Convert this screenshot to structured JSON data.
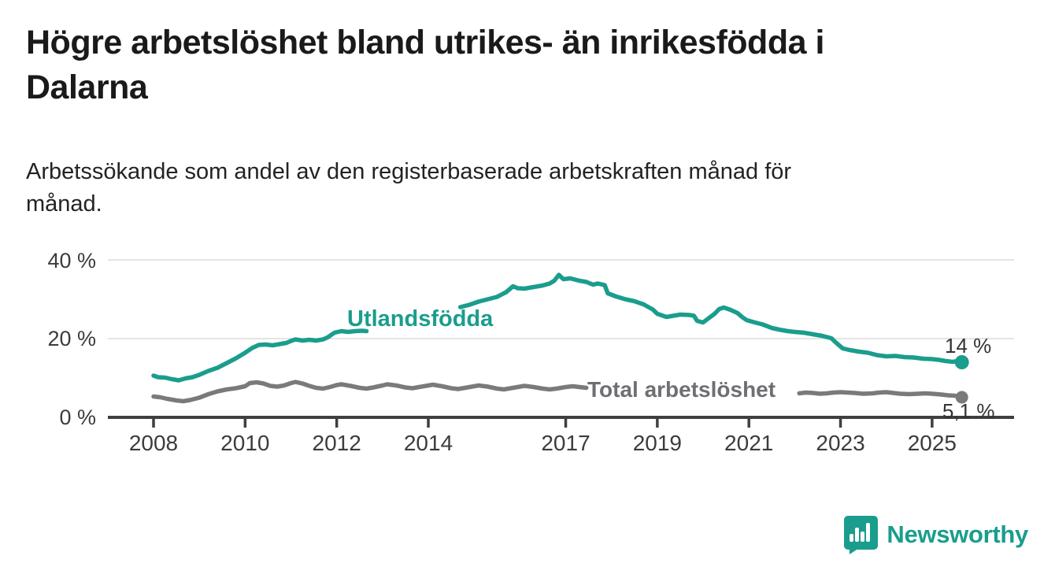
{
  "page": {
    "title_lines": [
      "Högre arbetslöshet bland utrikes- än inrikesfödda i",
      "Dalarna"
    ],
    "subtitle_lines": [
      "Arbetssökande som andel av den registerbaserade arbetskraften månad för",
      "månad."
    ],
    "logo": {
      "text": "Newsworthy",
      "color": "#1a9d8d"
    }
  },
  "chart_data": {
    "type": "line",
    "title": "Högre arbetslöshet bland utrikes- än inrikesfödda i Dalarna",
    "subtitle": "Arbetssökande som andel av den registerbaserade arbetskraften månad för månad.",
    "ylabel": "",
    "xlabel": "",
    "grid": "horizontal",
    "legend_position": "inline-labels",
    "y_axis": {
      "unit": "%",
      "range": [
        0,
        42
      ],
      "ticks": [
        {
          "label": "40 %",
          "value": 40
        },
        {
          "label": "20 %",
          "value": 20
        },
        {
          "label": "0 %",
          "value": 0
        }
      ]
    },
    "x_axis": {
      "range": [
        2007.05,
        2026.7
      ],
      "ticks": [
        {
          "label": "2008",
          "year": 2008
        },
        {
          "label": "2010",
          "year": 2010
        },
        {
          "label": "2012",
          "year": 2012
        },
        {
          "label": "2014",
          "year": 2014
        },
        {
          "label": "2017",
          "year": 2017
        },
        {
          "label": "2019",
          "year": 2019
        },
        {
          "label": "2021",
          "year": 2021
        },
        {
          "label": "2023",
          "year": 2023
        },
        {
          "label": "2025",
          "year": 2025
        }
      ]
    },
    "series": [
      {
        "name": "Utlandsfödda",
        "color": "#1a9d8d",
        "end_label": "14 %",
        "end_value": 14.0,
        "note": "line interrupted 2012.7-2014.7 by inline series label",
        "segments": [
          [
            [
              2008.0,
              10.6
            ],
            [
              2008.1,
              10.2
            ],
            [
              2008.25,
              10.1
            ],
            [
              2008.4,
              9.7
            ],
            [
              2008.55,
              9.4
            ],
            [
              2008.7,
              9.9
            ],
            [
              2008.85,
              10.2
            ],
            [
              2009.0,
              10.8
            ],
            [
              2009.2,
              11.8
            ],
            [
              2009.4,
              12.6
            ],
            [
              2009.6,
              13.8
            ],
            [
              2009.8,
              15.0
            ],
            [
              2010.0,
              16.4
            ],
            [
              2010.15,
              17.6
            ],
            [
              2010.3,
              18.4
            ],
            [
              2010.45,
              18.5
            ],
            [
              2010.6,
              18.3
            ],
            [
              2010.75,
              18.6
            ],
            [
              2010.9,
              18.9
            ],
            [
              2011.0,
              19.4
            ],
            [
              2011.1,
              19.8
            ],
            [
              2011.25,
              19.5
            ],
            [
              2011.4,
              19.7
            ],
            [
              2011.55,
              19.5
            ],
            [
              2011.7,
              19.8
            ],
            [
              2011.8,
              20.3
            ],
            [
              2011.95,
              21.5
            ],
            [
              2012.1,
              21.9
            ],
            [
              2012.25,
              21.7
            ],
            [
              2012.4,
              21.9
            ],
            [
              2012.55,
              22.0
            ],
            [
              2012.65,
              21.9
            ]
          ],
          [
            [
              2014.7,
              28.0
            ],
            [
              2014.9,
              28.6
            ],
            [
              2015.1,
              29.4
            ],
            [
              2015.3,
              30.0
            ],
            [
              2015.5,
              30.6
            ],
            [
              2015.7,
              31.8
            ],
            [
              2015.85,
              33.3
            ],
            [
              2015.95,
              32.8
            ],
            [
              2016.1,
              32.7
            ],
            [
              2016.3,
              33.1
            ],
            [
              2016.5,
              33.5
            ],
            [
              2016.65,
              34.0
            ],
            [
              2016.75,
              34.7
            ],
            [
              2016.85,
              36.2
            ],
            [
              2016.95,
              35.1
            ],
            [
              2017.1,
              35.3
            ],
            [
              2017.3,
              34.7
            ],
            [
              2017.45,
              34.4
            ],
            [
              2017.6,
              33.7
            ],
            [
              2017.7,
              34.0
            ],
            [
              2017.85,
              33.6
            ],
            [
              2017.92,
              31.5
            ],
            [
              2018.1,
              30.7
            ],
            [
              2018.3,
              30.0
            ],
            [
              2018.5,
              29.5
            ],
            [
              2018.7,
              28.7
            ],
            [
              2018.9,
              27.4
            ],
            [
              2019.0,
              26.3
            ],
            [
              2019.2,
              25.5
            ],
            [
              2019.35,
              25.8
            ],
            [
              2019.5,
              26.1
            ],
            [
              2019.7,
              26.0
            ],
            [
              2019.8,
              25.8
            ],
            [
              2019.87,
              24.5
            ],
            [
              2020.0,
              24.1
            ],
            [
              2020.1,
              25.0
            ],
            [
              2020.25,
              26.3
            ],
            [
              2020.35,
              27.5
            ],
            [
              2020.45,
              27.9
            ],
            [
              2020.6,
              27.3
            ],
            [
              2020.75,
              26.5
            ],
            [
              2020.85,
              25.5
            ],
            [
              2020.95,
              24.7
            ],
            [
              2021.1,
              24.2
            ],
            [
              2021.3,
              23.6
            ],
            [
              2021.5,
              22.7
            ],
            [
              2021.7,
              22.2
            ],
            [
              2021.85,
              21.9
            ],
            [
              2022.0,
              21.7
            ],
            [
              2022.2,
              21.5
            ],
            [
              2022.4,
              21.1
            ],
            [
              2022.6,
              20.7
            ],
            [
              2022.8,
              20.1
            ],
            [
              2022.9,
              19.0
            ],
            [
              2023.05,
              17.5
            ],
            [
              2023.2,
              17.1
            ],
            [
              2023.4,
              16.7
            ],
            [
              2023.6,
              16.4
            ],
            [
              2023.8,
              15.8
            ],
            [
              2024.0,
              15.5
            ],
            [
              2024.2,
              15.6
            ],
            [
              2024.4,
              15.3
            ],
            [
              2024.6,
              15.2
            ],
            [
              2024.8,
              14.9
            ],
            [
              2025.0,
              14.8
            ],
            [
              2025.15,
              14.6
            ],
            [
              2025.3,
              14.3
            ],
            [
              2025.45,
              14.1
            ],
            [
              2025.55,
              14.3
            ],
            [
              2025.65,
              14.0
            ]
          ]
        ]
      },
      {
        "name": "Total arbetslöshet",
        "color": "#7a7a7c",
        "end_label": "5,1 %",
        "end_value": 5.1,
        "note": "line interrupted 2017.5-2022.1 by inline series label",
        "segments": [
          [
            [
              2008.0,
              5.3
            ],
            [
              2008.15,
              5.1
            ],
            [
              2008.3,
              4.7
            ],
            [
              2008.5,
              4.3
            ],
            [
              2008.65,
              4.1
            ],
            [
              2008.8,
              4.4
            ],
            [
              2009.0,
              5.0
            ],
            [
              2009.2,
              5.9
            ],
            [
              2009.4,
              6.6
            ],
            [
              2009.6,
              7.1
            ],
            [
              2009.8,
              7.4
            ],
            [
              2010.0,
              7.9
            ],
            [
              2010.1,
              8.7
            ],
            [
              2010.25,
              8.9
            ],
            [
              2010.4,
              8.6
            ],
            [
              2010.55,
              8.0
            ],
            [
              2010.7,
              7.8
            ],
            [
              2010.85,
              8.1
            ],
            [
              2011.0,
              8.7
            ],
            [
              2011.1,
              9.0
            ],
            [
              2011.25,
              8.6
            ],
            [
              2011.4,
              8.0
            ],
            [
              2011.55,
              7.5
            ],
            [
              2011.7,
              7.3
            ],
            [
              2011.85,
              7.7
            ],
            [
              2012.0,
              8.2
            ],
            [
              2012.1,
              8.4
            ],
            [
              2012.3,
              8.0
            ],
            [
              2012.5,
              7.5
            ],
            [
              2012.65,
              7.3
            ],
            [
              2012.8,
              7.6
            ],
            [
              2013.0,
              8.1
            ],
            [
              2013.1,
              8.4
            ],
            [
              2013.3,
              8.1
            ],
            [
              2013.5,
              7.6
            ],
            [
              2013.65,
              7.4
            ],
            [
              2013.8,
              7.7
            ],
            [
              2014.0,
              8.1
            ],
            [
              2014.1,
              8.3
            ],
            [
              2014.3,
              7.9
            ],
            [
              2014.5,
              7.4
            ],
            [
              2014.65,
              7.2
            ],
            [
              2014.8,
              7.5
            ],
            [
              2015.0,
              7.9
            ],
            [
              2015.1,
              8.1
            ],
            [
              2015.3,
              7.8
            ],
            [
              2015.5,
              7.3
            ],
            [
              2015.65,
              7.1
            ],
            [
              2015.8,
              7.4
            ],
            [
              2016.0,
              7.8
            ],
            [
              2016.1,
              8.0
            ],
            [
              2016.3,
              7.7
            ],
            [
              2016.5,
              7.3
            ],
            [
              2016.65,
              7.1
            ],
            [
              2016.8,
              7.3
            ],
            [
              2017.0,
              7.7
            ],
            [
              2017.15,
              7.9
            ],
            [
              2017.3,
              7.7
            ],
            [
              2017.45,
              7.5
            ]
          ],
          [
            [
              2022.1,
              6.1
            ],
            [
              2022.25,
              6.3
            ],
            [
              2022.4,
              6.2
            ],
            [
              2022.55,
              6.0
            ],
            [
              2022.7,
              6.1
            ],
            [
              2022.85,
              6.3
            ],
            [
              2023.0,
              6.4
            ],
            [
              2023.15,
              6.3
            ],
            [
              2023.3,
              6.2
            ],
            [
              2023.5,
              6.0
            ],
            [
              2023.7,
              6.1
            ],
            [
              2023.85,
              6.3
            ],
            [
              2024.0,
              6.4
            ],
            [
              2024.15,
              6.2
            ],
            [
              2024.3,
              6.0
            ],
            [
              2024.5,
              5.9
            ],
            [
              2024.7,
              6.0
            ],
            [
              2024.85,
              6.1
            ],
            [
              2025.0,
              6.0
            ],
            [
              2025.2,
              5.8
            ],
            [
              2025.35,
              5.6
            ],
            [
              2025.5,
              5.5
            ],
            [
              2025.65,
              5.1
            ]
          ]
        ]
      }
    ],
    "colors": {
      "grid": "#e4e4e4",
      "axis": "#3f3f3f",
      "axis_text": "#3c3c3c",
      "value_label_text": "#333333"
    }
  }
}
